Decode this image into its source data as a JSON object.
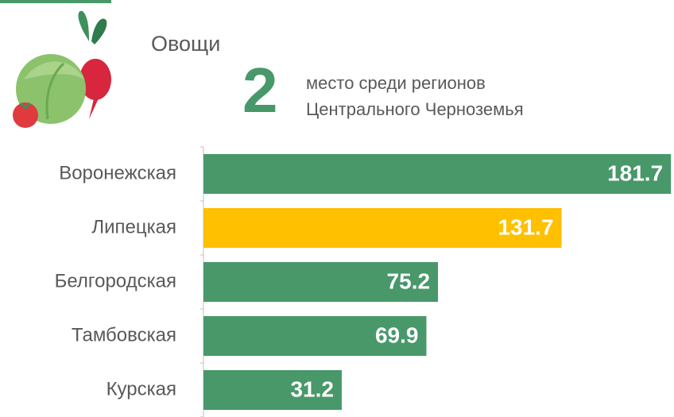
{
  "chart_data": {
    "type": "bar",
    "orientation": "horizontal",
    "title": "Овощи",
    "rank": "2",
    "subtitle": [
      "место среди регионов",
      "Центрального Черноземья"
    ],
    "categories": [
      "Воронежская",
      "Липецкая",
      "Белгородская",
      "Тамбовская",
      "Курская"
    ],
    "values": [
      181.7,
      131.7,
      75.2,
      69.9,
      31.2
    ],
    "colors": [
      "#48986a",
      "#ffc000",
      "#48986a",
      "#48986a",
      "#48986a"
    ],
    "xlim": [
      -32,
      182
    ]
  }
}
